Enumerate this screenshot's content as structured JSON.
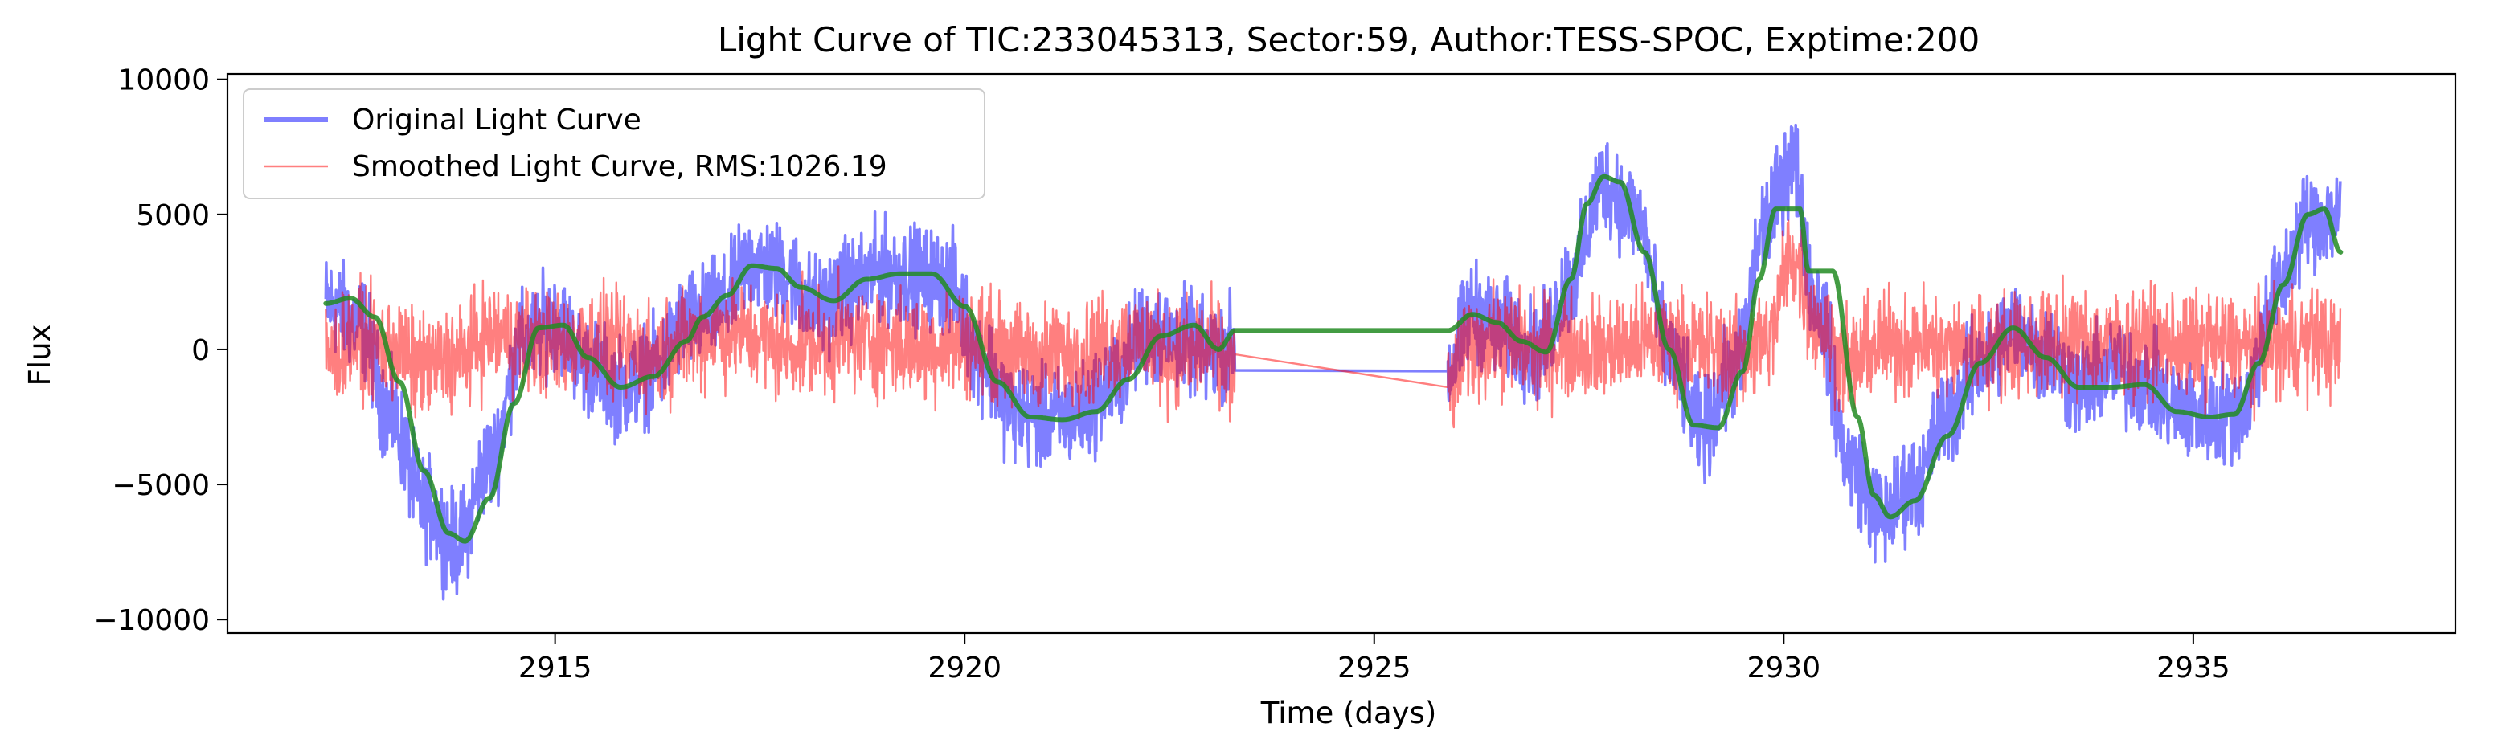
{
  "chart_data": {
    "type": "line",
    "title": "Light Curve of TIC:233045313, Sector:59, Author:TESS-SPOC, Exptime:200",
    "xlabel": "Time (days)",
    "ylabel": "Flux",
    "xlim": [
      2911.0,
      2938.2
    ],
    "ylim": [
      -10500,
      10200
    ],
    "xticks": [
      2915,
      2920,
      2925,
      2930,
      2935
    ],
    "xtick_labels": [
      "2915",
      "2920",
      "2925",
      "2930",
      "2935"
    ],
    "yticks": [
      -10000,
      -5000,
      0,
      5000,
      10000
    ],
    "ytick_labels": [
      "−10000",
      "−5000",
      "0",
      "5000",
      "10000"
    ],
    "grid": false,
    "legend_position": "top-left",
    "legend": [
      "Original Light Curve",
      "Smoothed Light Curve, RMS:1026.19"
    ],
    "gap": [
      2923.3,
      2925.9
    ],
    "series": [
      {
        "name": "Original Light Curve",
        "color": "#0000ff",
        "noise": 800,
        "x": [
          2912.2,
          2912.6,
          2913.0,
          2913.4,
          2913.8,
          2914.2,
          2914.6,
          2915.0,
          2915.4,
          2915.8,
          2916.2,
          2916.6,
          2917.0,
          2917.4,
          2917.8,
          2918.2,
          2918.6,
          2919.0,
          2919.4,
          2919.8,
          2920.2,
          2920.6,
          2921.0,
          2921.4,
          2921.8,
          2922.2,
          2922.6,
          2923.0,
          2923.3,
          2925.9,
          2926.2,
          2926.6,
          2927.0,
          2927.4,
          2927.8,
          2928.2,
          2928.6,
          2929.0,
          2929.4,
          2929.8,
          2930.1,
          2930.4,
          2930.8,
          2931.2,
          2931.6,
          2932.0,
          2932.4,
          2932.8,
          2933.2,
          2933.6,
          2934.0,
          2934.4,
          2934.8,
          2935.2,
          2935.6,
          2936.0,
          2936.4,
          2936.8
        ],
        "y": [
          1700,
          1000,
          -2500,
          -5800,
          -7200,
          -4200,
          200,
          1100,
          -600,
          -1400,
          -800,
          1000,
          1500,
          3200,
          2800,
          1600,
          2300,
          2900,
          2700,
          2500,
          -300,
          -2300,
          -2600,
          -2400,
          -1300,
          600,
          400,
          -200,
          200,
          -800,
          1400,
          600,
          -100,
          2500,
          6200,
          5000,
          -200,
          -3000,
          -800,
          4800,
          7000,
          1800,
          -4200,
          -6200,
          -5000,
          -2400,
          -500,
          800,
          -100,
          -1400,
          -800,
          -1200,
          -2200,
          -2500,
          -2200,
          2000,
          4800,
          5000
        ]
      },
      {
        "name": "Smoothed Light Curve, RMS:1026.19",
        "color": "#ff0000",
        "noise": 900,
        "x": [
          2912.2,
          2912.6,
          2913.0,
          2913.4,
          2913.8,
          2914.2,
          2914.6,
          2915.0,
          2915.4,
          2915.8,
          2916.2,
          2916.6,
          2917.0,
          2917.4,
          2917.8,
          2918.2,
          2918.6,
          2919.0,
          2919.4,
          2919.8,
          2920.2,
          2920.6,
          2921.0,
          2921.4,
          2921.8,
          2922.2,
          2922.6,
          2923.0,
          2923.3,
          2925.9,
          2926.2,
          2926.6,
          2927.0,
          2927.4,
          2927.8,
          2928.2,
          2928.6,
          2929.0,
          2929.4,
          2929.8,
          2930.1,
          2930.4,
          2930.8,
          2931.2,
          2931.6,
          2932.0,
          2932.4,
          2932.8,
          2933.2,
          2933.6,
          2934.0,
          2934.4,
          2934.8,
          2935.2,
          2935.6,
          2936.0,
          2936.4,
          2936.8
        ],
        "y": [
          -200,
          300,
          0,
          -700,
          -300,
          500,
          400,
          100,
          400,
          0,
          -200,
          300,
          700,
          500,
          100,
          200,
          400,
          300,
          0,
          200,
          300,
          -200,
          -300,
          -100,
          200,
          300,
          -200,
          0,
          -800,
          -1400,
          200,
          300,
          0,
          100,
          0,
          200,
          300,
          100,
          -200,
          300,
          3500,
          1000,
          -500,
          200,
          300,
          0,
          200,
          100,
          300,
          300,
          200,
          400,
          100,
          200,
          0,
          200,
          300,
          100
        ]
      },
      {
        "name": "",
        "color": "#228b22",
        "x": [
          2912.2,
          2912.5,
          2912.8,
          2913.1,
          2913.4,
          2913.7,
          2913.9,
          2914.2,
          2914.5,
          2914.8,
          2915.1,
          2915.4,
          2915.8,
          2916.2,
          2916.6,
          2916.8,
          2917.1,
          2917.4,
          2917.7,
          2918.0,
          2918.4,
          2918.8,
          2919.2,
          2919.6,
          2920.0,
          2920.4,
          2920.8,
          2921.2,
          2921.6,
          2922.0,
          2922.4,
          2922.8,
          2923.1,
          2923.3,
          2925.9,
          2926.2,
          2926.5,
          2926.8,
          2927.1,
          2927.4,
          2927.6,
          2927.8,
          2928.0,
          2928.3,
          2928.6,
          2928.9,
          2929.2,
          2929.5,
          2929.7,
          2929.9,
          2930.2,
          2930.3,
          2930.6,
          2930.9,
          2931.1,
          2931.3,
          2931.6,
          2932.0,
          2932.4,
          2932.8,
          2933.2,
          2933.6,
          2934.0,
          2934.4,
          2934.8,
          2935.2,
          2935.5,
          2935.8,
          2936.1,
          2936.4,
          2936.6,
          2936.8
        ],
        "y": [
          1700,
          1900,
          1200,
          -1200,
          -4500,
          -6800,
          -7100,
          -5500,
          -2000,
          800,
          900,
          -300,
          -1400,
          -1000,
          300,
          1200,
          2000,
          3100,
          3000,
          2300,
          1800,
          2600,
          2800,
          2800,
          1600,
          -1200,
          -2500,
          -2600,
          -2300,
          -1100,
          500,
          900,
          0,
          700,
          700,
          1300,
          1000,
          300,
          -100,
          2600,
          5400,
          6400,
          6200,
          3600,
          0,
          -2800,
          -2900,
          -800,
          2600,
          5200,
          5200,
          2900,
          2900,
          -2500,
          -5400,
          -6200,
          -5600,
          -3200,
          -500,
          800,
          -300,
          -1400,
          -1400,
          -1300,
          -2300,
          -2500,
          -2400,
          -500,
          2400,
          5000,
          5200,
          3600
        ]
      }
    ]
  }
}
